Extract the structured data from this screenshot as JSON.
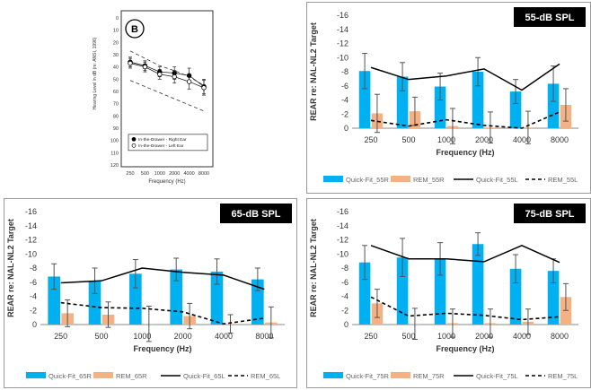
{
  "chart_data": [
    {
      "id": "panel-b",
      "type": "line",
      "panel_label": "B",
      "ylabel": "Hearing Level in dB (re: ANSI, 1996)",
      "xlabel": "Frequency (Hz)",
      "y_reversed": true,
      "ylim": [
        0,
        120
      ],
      "yticks": [
        "0",
        "10",
        "20",
        "30",
        "40",
        "50",
        "60",
        "70",
        "80",
        "90",
        "100",
        "110",
        "120"
      ],
      "categories": [
        "250",
        "500",
        "1000",
        "2000",
        "4000",
        "8000"
      ],
      "series": [
        {
          "name": "In-the-Drawer - Right Ear",
          "marker": "filled-circle",
          "values": [
            36,
            39,
            44,
            45,
            47,
            56
          ]
        },
        {
          "name": "In-the-Drawer - Left Ear",
          "marker": "open-circle",
          "values": [
            37,
            40,
            46,
            48,
            52,
            57
          ]
        }
      ],
      "errors": [
        [
          4,
          4,
          4,
          5,
          6,
          6
        ],
        [
          4,
          4,
          4,
          5,
          6,
          6
        ]
      ],
      "dashed_bounds": [
        [
          27,
          33,
          39,
          43,
          48,
          55
        ],
        [
          51,
          56,
          61,
          66,
          71,
          76
        ]
      ]
    },
    {
      "id": "panel-55",
      "type": "bar",
      "title": "55-dB SPL",
      "ylabel": "REAR re: NAL-NL2 Target",
      "xlabel": "Frequency (Hz)",
      "y_reversed": true,
      "ylim": [
        -16,
        0
      ],
      "yticks": [
        "-16",
        "-14",
        "-12",
        "-10",
        "-8",
        "-6",
        "-4",
        "-2",
        "0"
      ],
      "categories": [
        "250",
        "500",
        "1000",
        "2000",
        "4000",
        "8000"
      ],
      "series": [
        {
          "name": "Quick-Fit_55R",
          "kind": "bar",
          "color": "#00b0f0",
          "values": [
            -8.1,
            -7.3,
            -5.9,
            -8.0,
            -5.2,
            -6.3
          ],
          "errors": [
            2.5,
            2.0,
            1.9,
            2.0,
            1.7,
            2.5
          ]
        },
        {
          "name": "REM_55R",
          "kind": "bar",
          "color": "#f4b183",
          "values": [
            -2.1,
            -2.4,
            -0.3,
            -0.1,
            -0.1,
            -3.3
          ],
          "errors": [
            2.7,
            2.0,
            2.5,
            2.2,
            2.3,
            2.3
          ]
        },
        {
          "name": "Quick-Fit_55L",
          "kind": "line",
          "dash": false,
          "values": [
            -8.6,
            -6.9,
            -7.4,
            -8.4,
            -5.4,
            -9.1
          ]
        },
        {
          "name": "REM_55L",
          "kind": "line",
          "dash": true,
          "values": [
            -1.1,
            -0.3,
            -1.2,
            -0.4,
            0.0,
            -2.3
          ]
        }
      ]
    },
    {
      "id": "panel-65",
      "type": "bar",
      "title": "65-dB SPL",
      "ylabel": "REAR re: NAL-NL2 Target",
      "xlabel": "Frequency (Hz)",
      "y_reversed": true,
      "ylim": [
        -16,
        0
      ],
      "yticks": [
        "-16",
        "-14",
        "-12",
        "-10",
        "-8",
        "-6",
        "-4",
        "-2",
        "0"
      ],
      "categories": [
        "250",
        "500",
        "1000",
        "2000",
        "4000",
        "8000"
      ],
      "series": [
        {
          "name": "Quick-Fit_65R",
          "kind": "bar",
          "color": "#00b0f0",
          "values": [
            -6.8,
            -6.2,
            -7.2,
            -7.8,
            -7.5,
            -6.4
          ],
          "errors": [
            1.8,
            1.8,
            2.0,
            1.6,
            1.8,
            1.6
          ]
        },
        {
          "name": "REM_65R",
          "kind": "bar",
          "color": "#f4b183",
          "values": [
            -1.6,
            -1.4,
            -0.1,
            -1.2,
            -0.1,
            -0.3
          ],
          "errors": [
            1.9,
            1.8,
            2.5,
            1.8,
            1.3,
            2.2
          ]
        },
        {
          "name": "Quick-Fit_65L",
          "kind": "line",
          "dash": false,
          "values": [
            -5.9,
            -6.2,
            -8.0,
            -7.4,
            -7.0,
            -5.0
          ]
        },
        {
          "name": "REM_65L",
          "kind": "line",
          "dash": true,
          "values": [
            -3.1,
            -2.4,
            -2.3,
            -1.8,
            -0.1,
            -0.9
          ]
        }
      ]
    },
    {
      "id": "panel-75",
      "type": "bar",
      "title": "75-dB SPL",
      "ylabel": "REAR re: NAL-NL2 Target",
      "xlabel": "Frequency (Hz)",
      "y_reversed": true,
      "ylim": [
        -16,
        0
      ],
      "yticks": [
        "-16",
        "-14",
        "-12",
        "-10",
        "-8",
        "-6",
        "-4",
        "-2",
        "0"
      ],
      "categories": [
        "250",
        "500",
        "1000",
        "2000",
        "4000",
        "8000"
      ],
      "series": [
        {
          "name": "Quick-Fit_75R",
          "kind": "bar",
          "color": "#00b0f0",
          "values": [
            -8.8,
            -9.5,
            -9.3,
            -11.4,
            -7.9,
            -7.6
          ],
          "errors": [
            2.4,
            2.7,
            2.3,
            1.6,
            2.0,
            1.7
          ]
        },
        {
          "name": "REM_75R",
          "kind": "bar",
          "color": "#f4b183",
          "values": [
            -3.0,
            -0.1,
            -0.2,
            -0.2,
            -0.4,
            -3.9
          ],
          "errors": [
            2.0,
            2.2,
            2.0,
            2.0,
            1.8,
            1.9
          ]
        },
        {
          "name": "Quick-Fit_75L",
          "kind": "line",
          "dash": false,
          "values": [
            -11.2,
            -9.3,
            -9.3,
            -8.9,
            -11.2,
            -8.8
          ]
        },
        {
          "name": "REM_75L",
          "kind": "line",
          "dash": true,
          "values": [
            -3.9,
            -1.2,
            -1.6,
            -1.3,
            -0.7,
            -1.1
          ]
        }
      ]
    }
  ]
}
